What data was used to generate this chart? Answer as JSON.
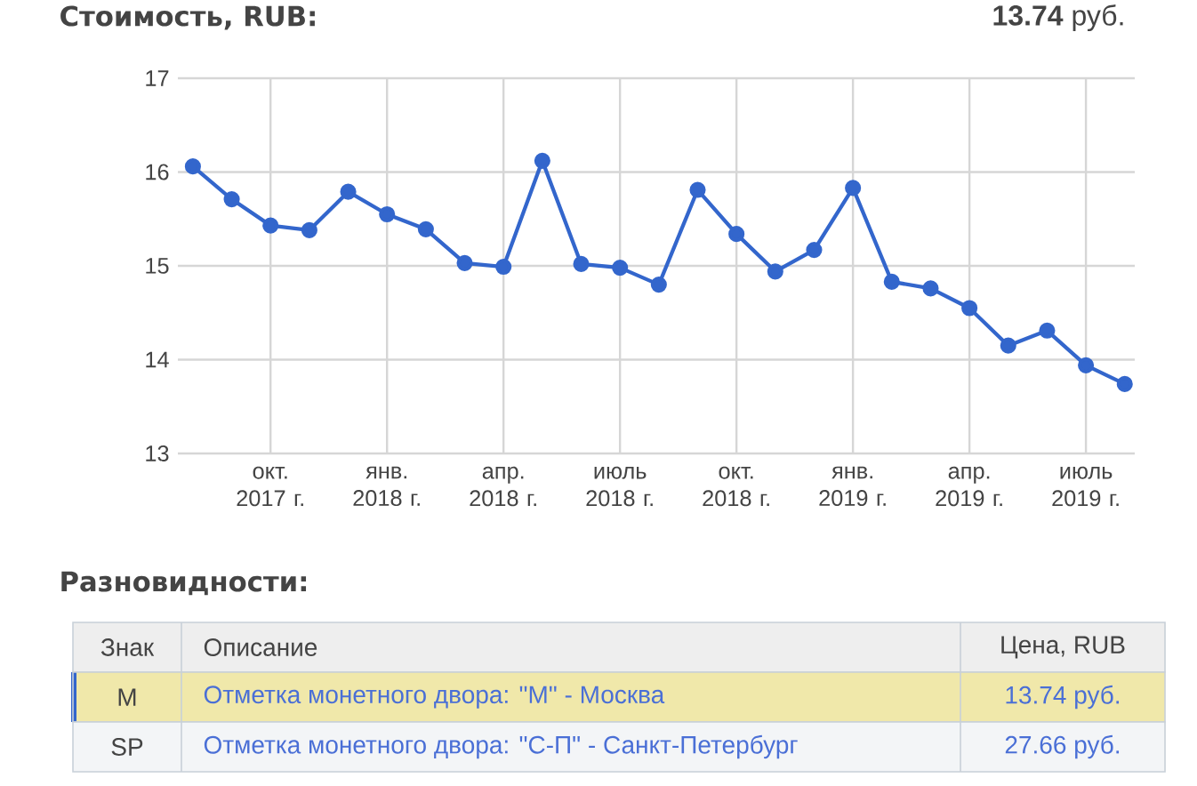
{
  "chart_data": {
    "type": "line",
    "title": "Стоимость, RUB:",
    "subtitle": "**13.74** руб.",
    "x": [
      "2017-08",
      "2017-09",
      "2017-10",
      "2017-11",
      "2017-12",
      "2018-01",
      "2018-02",
      "2018-03",
      "2018-04",
      "2018-05",
      "2018-06",
      "2018-07",
      "2018-08",
      "2018-09",
      "2018-10",
      "2018-11",
      "2018-12",
      "2019-01",
      "2019-02",
      "2019-03",
      "2019-04",
      "2019-05",
      "2019-06",
      "2019-07",
      "2019-08"
    ],
    "series": [
      {
        "color": "#3366cc",
        "values": [
          16.06,
          15.71,
          15.43,
          15.38,
          15.79,
          15.55,
          15.39,
          15.03,
          14.99,
          16.12,
          15.02,
          14.98,
          14.8,
          15.81,
          15.34,
          14.94,
          15.17,
          15.83,
          14.83,
          14.76,
          14.55,
          14.15,
          14.31,
          13.94,
          13.74
        ]
      }
    ],
    "xlim": [
      "2017-07-20",
      "2019-08-09"
    ],
    "xticks": [
      {
        "value": "2017-10",
        "label": "окт. 2017 г."
      },
      {
        "value": "2018-01",
        "label": "янв. 2018 г."
      },
      {
        "value": "2018-04",
        "label": "апр. 2018 г."
      },
      {
        "value": "2018-07",
        "label": "июль 2018 г."
      },
      {
        "value": "2018-10",
        "label": "окт. 2018 г."
      },
      {
        "value": "2019-01",
        "label": "янв. 2019 г."
      },
      {
        "value": "2019-04",
        "label": "апр. 2019 г."
      },
      {
        "value": "2019-07",
        "label": "июль 2019 г."
      }
    ],
    "ylim": [
      13,
      17
    ],
    "yticks": [
      13,
      14,
      15,
      16,
      17
    ],
    "grid": true,
    "marker": "circle",
    "line_style": "solid",
    "annotations": [
      "Разновидности:",
      "Знак",
      "Описание",
      "Цена, RUB",
      "M",
      "Отметка монетного двора: \"M\" - Москва",
      "13.74 руб.",
      "SP",
      "Отметка монетного двора: \"С-П\" - Санкт-Петербург",
      "27.66 руб."
    ]
  }
}
